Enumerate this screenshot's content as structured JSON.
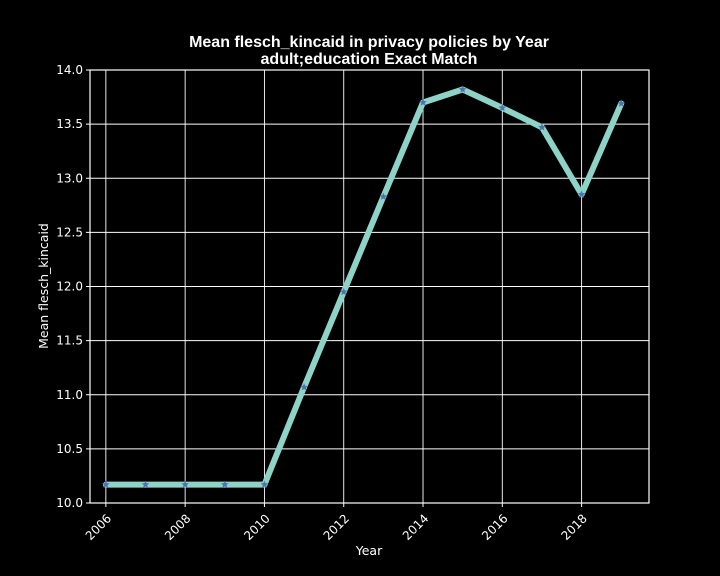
{
  "chart_data": {
    "type": "line",
    "title": "Mean flesch_kincaid in privacy policies by Year",
    "subtitle": "adult;education Exact Match",
    "xlabel": "Year",
    "ylabel": "Mean flesch_kincaid",
    "x": [
      2006,
      2007,
      2008,
      2009,
      2010,
      2011,
      2012,
      2013,
      2014,
      2015,
      2016,
      2017,
      2018,
      2019
    ],
    "y": [
      10.17,
      10.17,
      10.17,
      10.17,
      10.17,
      11.07,
      11.95,
      12.83,
      13.7,
      13.82,
      13.65,
      13.47,
      12.85,
      13.69
    ],
    "xticks": [
      "2006",
      "2008",
      "2010",
      "2012",
      "2014",
      "2016",
      "2018"
    ],
    "yticks": [
      "10.0",
      "10.5",
      "11.0",
      "11.5",
      "12.0",
      "12.5",
      "13.0",
      "13.5",
      "14.0"
    ],
    "xlim": [
      2005.6,
      2019.7
    ],
    "ylim": [
      10.0,
      14.0
    ],
    "grid": true,
    "colors": {
      "background": "#000000",
      "line": "#8dd3c7",
      "marker": "#4c72b0",
      "text": "#ffffff",
      "grid": "#ffffff"
    }
  }
}
